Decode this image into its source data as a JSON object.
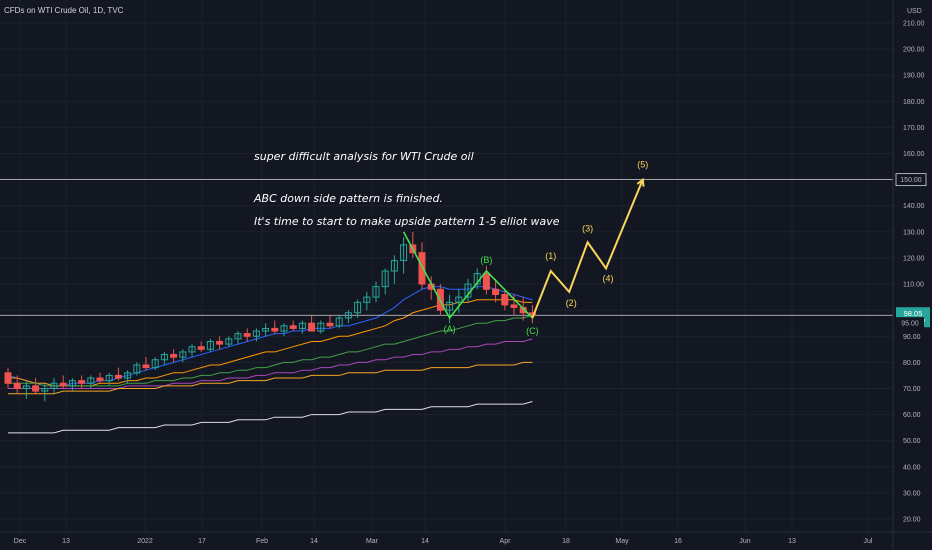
{
  "chart_data": {
    "type": "candlestick",
    "title": "CFDs on WTI Crude Oil, 1D, TVC",
    "currency": "USD",
    "ylim": [
      20,
      210
    ],
    "y_ticks": [
      20,
      30,
      40,
      50,
      60,
      70,
      80,
      90,
      100,
      110,
      120,
      130,
      140,
      150,
      160,
      170,
      180,
      190,
      200,
      210
    ],
    "x_ticks": [
      "Dec",
      "13",
      "2022",
      "17",
      "Feb",
      "14",
      "Mar",
      "14",
      "Apr",
      "18",
      "May",
      "16",
      "Jun",
      "13",
      "Jul"
    ],
    "candles_ohlc": [
      [
        76,
        78,
        70,
        72
      ],
      [
        72,
        75,
        68,
        70
      ],
      [
        70,
        73,
        66,
        71
      ],
      [
        71,
        74,
        68,
        69
      ],
      [
        69,
        72,
        65,
        70
      ],
      [
        70,
        74,
        68,
        72
      ],
      [
        72,
        75,
        70,
        71
      ],
      [
        71,
        74,
        69,
        73
      ],
      [
        73,
        75,
        70,
        72
      ],
      [
        72,
        75,
        70,
        74
      ],
      [
        74,
        76,
        72,
        73
      ],
      [
        73,
        76,
        71,
        75
      ],
      [
        75,
        78,
        73,
        74
      ],
      [
        74,
        77,
        72,
        76
      ],
      [
        76,
        80,
        75,
        79
      ],
      [
        79,
        82,
        77,
        78
      ],
      [
        78,
        82,
        77,
        81
      ],
      [
        81,
        84,
        79,
        83
      ],
      [
        83,
        85,
        80,
        82
      ],
      [
        82,
        85,
        80,
        84
      ],
      [
        84,
        87,
        82,
        86
      ],
      [
        86,
        88,
        84,
        85
      ],
      [
        85,
        89,
        84,
        88
      ],
      [
        88,
        90,
        85,
        87
      ],
      [
        87,
        90,
        86,
        89
      ],
      [
        89,
        92,
        87,
        91
      ],
      [
        91,
        93,
        88,
        90
      ],
      [
        90,
        93,
        88,
        92
      ],
      [
        92,
        95,
        90,
        93
      ],
      [
        93,
        96,
        91,
        92
      ],
      [
        92,
        95,
        90,
        94
      ],
      [
        94,
        96,
        92,
        93
      ],
      [
        93,
        96,
        91,
        95
      ],
      [
        95,
        98,
        93,
        92
      ],
      [
        92,
        96,
        91,
        95
      ],
      [
        95,
        98,
        93,
        94
      ],
      [
        94,
        98,
        93,
        97
      ],
      [
        97,
        100,
        95,
        99
      ],
      [
        99,
        104,
        97,
        103
      ],
      [
        103,
        107,
        100,
        105
      ],
      [
        105,
        111,
        103,
        109
      ],
      [
        109,
        116,
        106,
        115
      ],
      [
        115,
        121,
        110,
        119
      ],
      [
        119,
        128,
        114,
        125
      ],
      [
        125,
        130,
        120,
        122
      ],
      [
        122,
        126,
        108,
        110
      ],
      [
        110,
        113,
        104,
        108
      ],
      [
        108,
        110,
        98,
        100
      ],
      [
        100,
        106,
        95,
        103
      ],
      [
        103,
        108,
        99,
        105
      ],
      [
        105,
        112,
        103,
        110
      ],
      [
        110,
        116,
        108,
        114
      ],
      [
        114,
        117,
        106,
        108
      ],
      [
        108,
        112,
        103,
        106
      ],
      [
        106,
        108,
        100,
        102
      ],
      [
        102,
        106,
        98,
        101
      ],
      [
        101,
        105,
        96,
        99
      ],
      [
        99,
        102,
        95,
        98
      ]
    ],
    "moving_averages": [
      {
        "color": "#2962ff",
        "values": [
          75,
          74,
          73,
          72,
          72,
          71,
          71,
          72,
          72,
          72,
          73,
          73,
          74,
          75,
          76,
          77,
          78,
          79,
          80,
          81,
          82,
          83,
          84,
          85,
          86,
          87,
          88,
          89,
          90,
          91,
          91,
          92,
          92,
          93,
          93,
          93,
          94,
          94,
          95,
          96,
          97,
          99,
          101,
          104,
          106,
          108,
          109,
          109,
          108,
          108,
          108,
          109,
          109,
          108,
          107,
          106,
          105,
          104
        ]
      },
      {
        "color": "#ff9800",
        "values": [
          74,
          74,
          73,
          72,
          72,
          71,
          71,
          71,
          71,
          71,
          72,
          72,
          72,
          73,
          73,
          74,
          74,
          75,
          76,
          76,
          77,
          78,
          79,
          79,
          80,
          81,
          82,
          83,
          84,
          84,
          85,
          86,
          87,
          88,
          88,
          89,
          90,
          90,
          91,
          92,
          93,
          94,
          96,
          97,
          99,
          100,
          101,
          102,
          102,
          103,
          103,
          104,
          104,
          104,
          104,
          104,
          103,
          103
        ]
      },
      {
        "color": "#43a047",
        "values": [
          72,
          72,
          72,
          72,
          71,
          71,
          71,
          71,
          71,
          71,
          71,
          71,
          71,
          72,
          72,
          72,
          73,
          73,
          73,
          74,
          74,
          75,
          75,
          76,
          76,
          77,
          77,
          78,
          78,
          79,
          80,
          80,
          81,
          81,
          82,
          82,
          83,
          84,
          84,
          85,
          86,
          87,
          87,
          88,
          89,
          90,
          91,
          92,
          92,
          93,
          94,
          95,
          95,
          96,
          96,
          97,
          97,
          98
        ]
      },
      {
        "color": "#ab47bc",
        "values": [
          70,
          70,
          70,
          70,
          70,
          70,
          70,
          70,
          70,
          70,
          70,
          70,
          70,
          71,
          71,
          71,
          71,
          71,
          72,
          72,
          72,
          73,
          73,
          73,
          74,
          74,
          74,
          75,
          75,
          76,
          76,
          76,
          77,
          77,
          78,
          78,
          79,
          79,
          80,
          80,
          81,
          81,
          82,
          82,
          83,
          83,
          84,
          84,
          85,
          85,
          86,
          86,
          87,
          87,
          88,
          88,
          88,
          89
        ]
      },
      {
        "color": "#f5a623",
        "values": [
          68,
          68,
          68,
          68,
          68,
          68,
          69,
          69,
          69,
          69,
          69,
          69,
          70,
          70,
          70,
          70,
          70,
          71,
          71,
          71,
          71,
          72,
          72,
          72,
          72,
          73,
          73,
          73,
          73,
          74,
          74,
          74,
          74,
          75,
          75,
          75,
          75,
          76,
          76,
          76,
          76,
          77,
          77,
          77,
          77,
          77,
          78,
          78,
          78,
          78,
          78,
          79,
          79,
          79,
          79,
          79,
          80,
          80
        ]
      },
      {
        "color": "#e0e0e0",
        "values": [
          53,
          53,
          53,
          53,
          53,
          53,
          54,
          54,
          54,
          54,
          54,
          54,
          55,
          55,
          55,
          55,
          55,
          56,
          56,
          56,
          56,
          57,
          57,
          57,
          57,
          58,
          58,
          58,
          58,
          59,
          59,
          59,
          59,
          60,
          60,
          60,
          60,
          61,
          61,
          61,
          61,
          62,
          62,
          62,
          62,
          62,
          63,
          63,
          63,
          63,
          63,
          64,
          64,
          64,
          64,
          64,
          64,
          65
        ]
      }
    ],
    "horizontal_levels": [
      150,
      98.05
    ],
    "current_price": "98.05",
    "countdown": "02:59:57",
    "reference_price": "95.00",
    "abc_pattern": {
      "points": [
        [
          43,
          130
        ],
        [
          48,
          97
        ],
        [
          52,
          115
        ],
        [
          57,
          97
        ]
      ],
      "labels": [
        "(A)",
        "(B)",
        "(C)"
      ]
    },
    "wave_projection": {
      "points": [
        [
          57,
          97
        ],
        [
          59,
          115
        ],
        [
          61,
          107
        ],
        [
          63,
          126
        ],
        [
          65,
          116
        ],
        [
          69,
          150
        ]
      ],
      "labels": [
        "(1)",
        "(2)",
        "(3)",
        "(4)",
        "(5)"
      ]
    },
    "annotations": [
      "super difficult analysis for WTI Crude oil",
      "ABC down side pattern is finished.",
      "It's time to start to make upside pattern 1-5 elliot wave"
    ]
  }
}
